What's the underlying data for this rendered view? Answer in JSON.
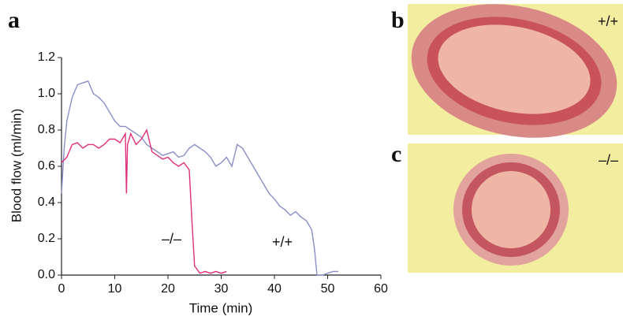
{
  "chart_data": {
    "type": "line",
    "title": "a",
    "xlabel": "Time (min)",
    "ylabel": "Blood flow (ml/min)",
    "xlim": [
      0,
      60
    ],
    "ylim": [
      0,
      1.2
    ],
    "xticks": [
      0,
      10,
      20,
      30,
      40,
      50,
      60
    ],
    "yticks": [
      {
        "value": 0,
        "label": "0.0"
      },
      0.2,
      0.4,
      0.6,
      0.8,
      {
        "value": 1,
        "label": "1.0"
      },
      1.2
    ],
    "series": [
      {
        "name": "+/+",
        "color": "#8a8fc8",
        "x": [
          0,
          0.5,
          1,
          2,
          3,
          4,
          5,
          6,
          7,
          8,
          9,
          10,
          11,
          12,
          13,
          14,
          15,
          16,
          17,
          18,
          19,
          20,
          21,
          22,
          23,
          24,
          25,
          26,
          27,
          28,
          29,
          30,
          31,
          32,
          33,
          34,
          35,
          36,
          37,
          38,
          39,
          40,
          41,
          42,
          43,
          44,
          45,
          46,
          47,
          47.5,
          48,
          49,
          50,
          51,
          52
        ],
        "values": [
          0.45,
          0.7,
          0.85,
          0.98,
          1.05,
          1.06,
          1.07,
          1.0,
          0.98,
          0.95,
          0.9,
          0.85,
          0.82,
          0.82,
          0.8,
          0.78,
          0.76,
          0.72,
          0.7,
          0.68,
          0.66,
          0.67,
          0.68,
          0.65,
          0.66,
          0.7,
          0.72,
          0.7,
          0.68,
          0.65,
          0.6,
          0.62,
          0.65,
          0.6,
          0.72,
          0.7,
          0.65,
          0.6,
          0.55,
          0.5,
          0.45,
          0.42,
          0.38,
          0.36,
          0.33,
          0.35,
          0.32,
          0.3,
          0.25,
          0.15,
          0.0,
          0.0,
          0.01,
          0.02,
          0.02
        ]
      },
      {
        "name": "–/–",
        "color": "#e0307a",
        "x": [
          0,
          1,
          2,
          3,
          4,
          5,
          6,
          7,
          8,
          9,
          10,
          11,
          12,
          12.2,
          12.4,
          13,
          14,
          15,
          16,
          17,
          18,
          19,
          20,
          21,
          22,
          23,
          24,
          24.5,
          25,
          26,
          27,
          28,
          29,
          30,
          31
        ],
        "values": [
          0.62,
          0.65,
          0.72,
          0.73,
          0.7,
          0.72,
          0.72,
          0.7,
          0.72,
          0.75,
          0.75,
          0.73,
          0.78,
          0.45,
          0.72,
          0.78,
          0.72,
          0.75,
          0.8,
          0.68,
          0.66,
          0.64,
          0.65,
          0.62,
          0.6,
          0.62,
          0.58,
          0.3,
          0.05,
          0.01,
          0.02,
          0.01,
          0.02,
          0.01,
          0.02
        ]
      }
    ]
  },
  "panels": [
    {
      "label": "b",
      "annotation": "+/+"
    },
    {
      "label": "c",
      "annotation": "–/–"
    }
  ]
}
